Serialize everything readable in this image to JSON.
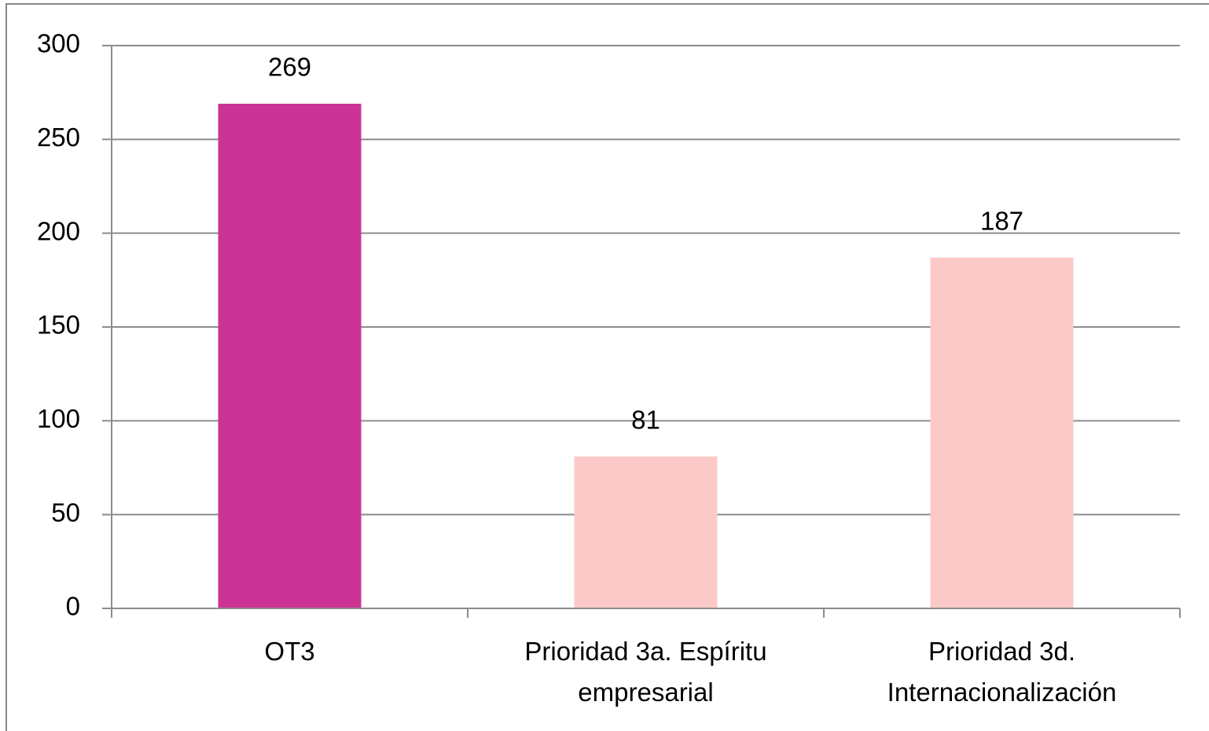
{
  "chart_data": {
    "type": "bar",
    "categories": [
      "OT3",
      "Prioridad 3a. Espíritu empresarial",
      "Prioridad 3d. Internacionalización"
    ],
    "values": [
      269,
      81,
      187
    ],
    "colors": [
      "#cb3495",
      "#fcc9c9",
      "#fcc9c9"
    ],
    "ylim": [
      0,
      300
    ],
    "yticks": [
      0,
      50,
      100,
      150,
      200,
      250,
      300
    ],
    "grid": true
  }
}
